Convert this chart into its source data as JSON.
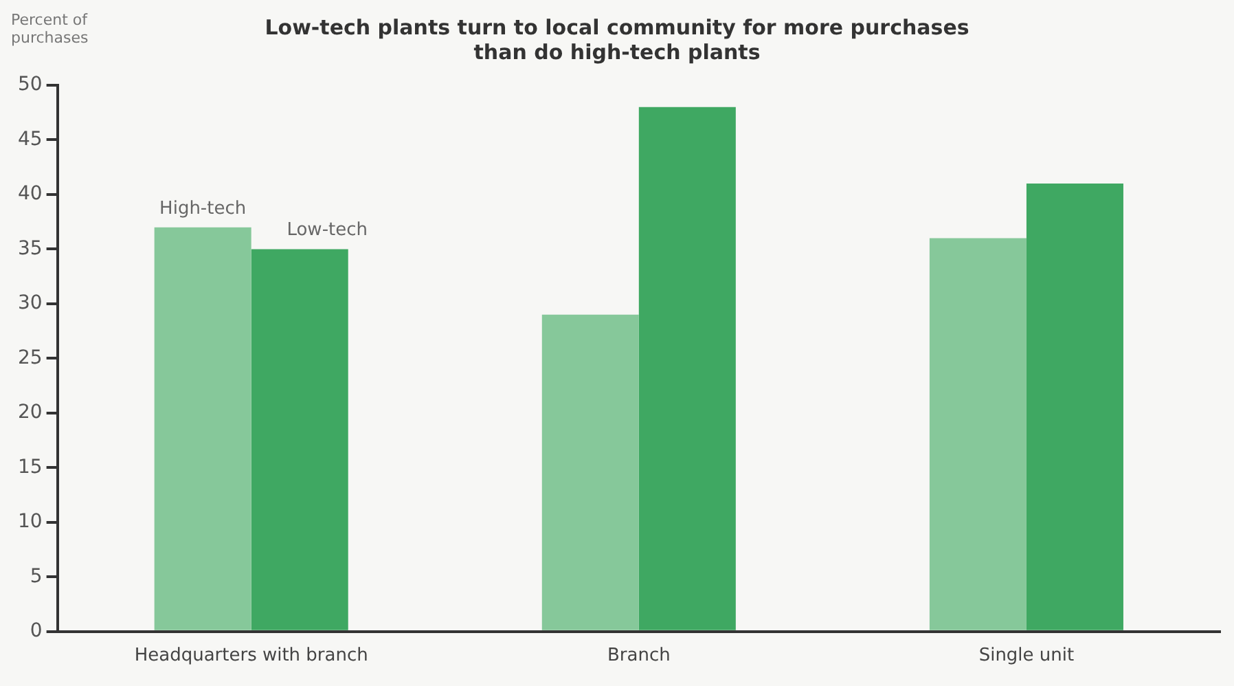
{
  "chart_data": {
    "type": "bar",
    "title": "Low-tech plants turn to local community for more purchases than do high-tech plants",
    "ylabel": "Percent of purchases",
    "categories": [
      "Headquarters with branch",
      "Branch",
      "Single unit"
    ],
    "series": [
      {
        "name": "High-tech",
        "color": "#86c89a",
        "values": [
          37,
          29,
          36
        ]
      },
      {
        "name": "Low-tech",
        "color": "#3fa862",
        "values": [
          35,
          48,
          41
        ]
      }
    ],
    "ylim": [
      0,
      50
    ],
    "yticks": [
      0,
      5,
      10,
      15,
      20,
      25,
      30,
      35,
      40,
      45,
      50
    ],
    "grid": false,
    "legend": false
  }
}
